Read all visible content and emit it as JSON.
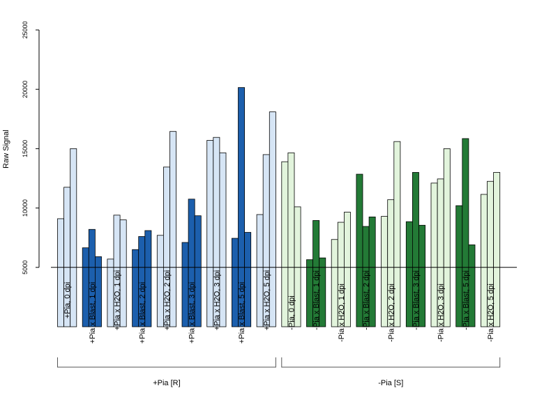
{
  "chart_data": {
    "type": "bar",
    "ylabel": "Raw Signal",
    "xlabel": "",
    "title": "",
    "ylim": [
      0,
      25000
    ],
    "yticks": [
      5000,
      10000,
      15000,
      20000,
      25000
    ],
    "reference_line": 5000,
    "grid": false,
    "legend": "none",
    "colors": {
      "blue_light": "#d6e5f5",
      "blue_dark": "#1c5fad",
      "green_light": "#e2f4dc",
      "green_dark": "#237a36",
      "axis": "#000000",
      "bracket": "#555555"
    },
    "groups": [
      {
        "label": "+Pia [R]",
        "first_bar": 0,
        "last_bar": 8
      },
      {
        "label": "-Pia [S]",
        "first_bar": 9,
        "last_bar": 17
      }
    ],
    "bars": [
      {
        "label": "+Pia, 0 dpi",
        "values": [
          9100,
          11750,
          15000
        ],
        "color": "blue_light"
      },
      {
        "label": "+Pia x Blast, 1 dpi",
        "values": [
          6650,
          8200,
          5900
        ],
        "color": "blue_dark"
      },
      {
        "label": "+Pia x H2O, 1 dpi",
        "values": [
          5700,
          9400,
          9000
        ],
        "color": "blue_light"
      },
      {
        "label": "+Pia x Blast, 2 dpi",
        "values": [
          6500,
          7600,
          8100
        ],
        "color": "blue_dark"
      },
      {
        "label": "+Pia x H2O, 2 dpi",
        "values": [
          7700,
          13450,
          16450
        ],
        "color": "blue_light"
      },
      {
        "label": "+Pia x Blast, 3 dpi",
        "values": [
          7100,
          10750,
          9350
        ],
        "color": "blue_dark"
      },
      {
        "label": "+Pia x H2O, 3 dpi",
        "values": [
          15700,
          15950,
          14650
        ],
        "color": "blue_light"
      },
      {
        "label": "+Pia x Blast, 5 dpi",
        "values": [
          7450,
          20150,
          7950
        ],
        "color": "blue_dark"
      },
      {
        "label": "+Pia x H2O, 5 dpi",
        "values": [
          9450,
          14500,
          18100
        ],
        "color": "blue_light"
      },
      {
        "label": "-Pia, 0 dpi",
        "values": [
          13900,
          14650,
          10100
        ],
        "color": "green_light"
      },
      {
        "label": "-Pia x Blast, 1 dpi",
        "values": [
          5650,
          8950,
          5800
        ],
        "color": "green_dark"
      },
      {
        "label": "-Pia x H2O, 1 dpi",
        "values": [
          7350,
          8800,
          9650
        ],
        "color": "green_light"
      },
      {
        "label": "-Pia x Blast, 2 dpi",
        "values": [
          12850,
          8450,
          9250
        ],
        "color": "green_dark"
      },
      {
        "label": "-Pia x H2O, 2 dpi",
        "values": [
          9300,
          10700,
          15600
        ],
        "color": "green_light"
      },
      {
        "label": "-Pia x Blast, 3 dpi",
        "values": [
          8850,
          13000,
          8550
        ],
        "color": "green_dark"
      },
      {
        "label": "-Pia x H2O, 3 dpi",
        "values": [
          12100,
          12450,
          15000
        ],
        "color": "green_light"
      },
      {
        "label": "-Pia x Blast, 5 dpi",
        "values": [
          10200,
          15850,
          6900
        ],
        "color": "green_dark"
      },
      {
        "label": "-Pia x H2O, 5 dpi",
        "values": [
          11150,
          12250,
          13000
        ],
        "color": "green_light"
      }
    ]
  }
}
